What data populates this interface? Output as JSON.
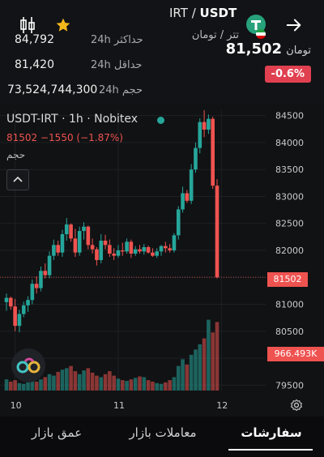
{
  "header": {
    "pair": {
      "base": "USDT",
      "quote": "IRT",
      "separator": " / "
    },
    "pair_name_fa": "تتر / تومان",
    "price": "81,502",
    "price_unit": "تومان",
    "change": "-0.6%",
    "back_icon": "arrow-right-icon",
    "favorite_icon": "star-icon",
    "chart_toggle_icon": "candlestick-icon",
    "stats": [
      {
        "label": "حداکثر 24h",
        "value": "84,792"
      },
      {
        "label": "حداقل 24h",
        "value": "81,420"
      },
      {
        "label": "حجم 24h",
        "value": "73,524,744,300"
      }
    ]
  },
  "chart": {
    "legend_symbol": "USDT-IRT · 1h · Nobitex",
    "legend_ohlc": "81502  −1550 (−1.87%)",
    "volume_label": "حجم",
    "collapse_icon": "chevron-up-icon",
    "logo_icon": "link-logo-icon",
    "settings_icon": "settings-icon",
    "last_price_tag": "81502",
    "volume_tag": "966.493K",
    "colors": {
      "up": "#26a69a",
      "down": "#ef5350",
      "tag": "#ef5350",
      "live": "#26a69a"
    }
  },
  "chart_data": {
    "type": "candlestick",
    "y_ticks": [
      84500,
      84000,
      83500,
      83000,
      82500,
      82000,
      81500,
      81000,
      80500,
      80000,
      79500
    ],
    "x_ticks": [
      {
        "label": "10",
        "index": 2
      },
      {
        "label": "11",
        "index": 26
      },
      {
        "label": "12",
        "index": 50
      }
    ],
    "ylim": [
      79400,
      84600
    ],
    "candles": [
      [
        81040,
        81200,
        80880,
        81120
      ],
      [
        81120,
        81140,
        80900,
        80960
      ],
      [
        80960,
        81100,
        80500,
        80600
      ],
      [
        80600,
        80900,
        80480,
        80820
      ],
      [
        80820,
        81050,
        80760,
        80980
      ],
      [
        80980,
        81150,
        80860,
        81080
      ],
      [
        81080,
        81460,
        81000,
        81380
      ],
      [
        81380,
        81520,
        81200,
        81300
      ],
      [
        81300,
        81700,
        81240,
        81620
      ],
      [
        81620,
        81760,
        81480,
        81540
      ],
      [
        81540,
        81980,
        81480,
        81900
      ],
      [
        81900,
        82200,
        81820,
        82100
      ],
      [
        82100,
        82180,
        81900,
        81960
      ],
      [
        81960,
        82380,
        81880,
        82300
      ],
      [
        82300,
        82600,
        82180,
        82480
      ],
      [
        82480,
        82500,
        82160,
        82220
      ],
      [
        82220,
        82400,
        81880,
        81960
      ],
      [
        81960,
        82440,
        81900,
        82360
      ],
      [
        82360,
        82520,
        82200,
        82440
      ],
      [
        82440,
        82460,
        82020,
        82100
      ],
      [
        82100,
        82220,
        81940,
        82020
      ],
      [
        82020,
        82060,
        81720,
        81820
      ],
      [
        81820,
        82300,
        81760,
        82180
      ],
      [
        82180,
        82290,
        82020,
        82100
      ],
      [
        82100,
        82200,
        81880,
        81940
      ],
      [
        81940,
        82040,
        81820,
        81900
      ],
      [
        81900,
        82100,
        81860,
        82000
      ],
      [
        82000,
        82140,
        81900,
        81980
      ],
      [
        81980,
        82220,
        81940,
        82160
      ],
      [
        82160,
        82200,
        81860,
        81940
      ],
      [
        81940,
        82080,
        81900,
        82020
      ],
      [
        82020,
        82100,
        81940,
        81980
      ],
      [
        81980,
        82120,
        81920,
        82060
      ],
      [
        82060,
        82090,
        81940,
        81960
      ],
      [
        81960,
        82040,
        81880,
        81900
      ],
      [
        81900,
        82040,
        81860,
        81980
      ],
      [
        81980,
        82100,
        81900,
        82080
      ],
      [
        82080,
        82160,
        81960,
        82040
      ],
      [
        82040,
        82120,
        81960,
        82000
      ],
      [
        82000,
        82320,
        81960,
        82280
      ],
      [
        82280,
        82820,
        82200,
        82760
      ],
      [
        82760,
        83180,
        82700,
        83060
      ],
      [
        83060,
        83120,
        82880,
        82920
      ],
      [
        82920,
        83600,
        82860,
        83500
      ],
      [
        83500,
        84000,
        83440,
        83900
      ],
      [
        83900,
        84450,
        83800,
        84380
      ],
      [
        84380,
        84600,
        84100,
        84240
      ],
      [
        84240,
        84520,
        84160,
        84440
      ],
      [
        84440,
        84480,
        83140,
        83200
      ],
      [
        83200,
        83320,
        81480,
        81502
      ]
    ],
    "volumes": [
      0.15,
      0.12,
      0.14,
      0.1,
      0.09,
      0.11,
      0.13,
      0.12,
      0.15,
      0.18,
      0.22,
      0.2,
      0.25,
      0.28,
      0.3,
      0.33,
      0.26,
      0.22,
      0.27,
      0.3,
      0.24,
      0.2,
      0.18,
      0.22,
      0.26,
      0.2,
      0.16,
      0.14,
      0.13,
      0.15,
      0.17,
      0.19,
      0.18,
      0.14,
      0.12,
      0.1,
      0.09,
      0.11,
      0.14,
      0.18,
      0.33,
      0.42,
      0.35,
      0.48,
      0.55,
      0.62,
      0.7,
      0.95,
      0.78,
      0.92
    ],
    "volume_max": 1.0
  },
  "tabs": [
    {
      "label": "عمق بازار",
      "active": false
    },
    {
      "label": "معاملات بازار",
      "active": false
    },
    {
      "label": "سفارشات",
      "active": true
    }
  ]
}
